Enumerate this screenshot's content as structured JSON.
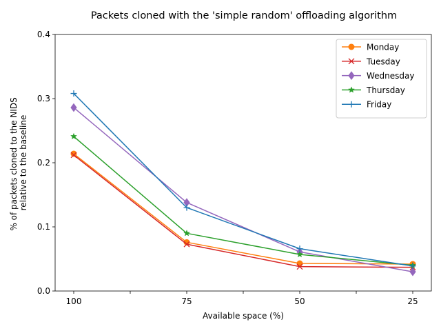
{
  "chart_data": {
    "type": "line",
    "title": "Packets cloned with the 'simple random' offloading algorithm",
    "xlabel": "Available space (%)",
    "ylabel": [
      "% of packets cloned to the NIDS",
      "relative to the baseline"
    ],
    "categories": [
      "100",
      "75",
      "50",
      "25"
    ],
    "ylim": [
      0,
      0.4
    ],
    "yticks": [
      "0.0",
      "0.1",
      "0.2",
      "0.3",
      "0.4"
    ],
    "ytick_values": [
      0,
      0.1,
      0.2,
      0.3,
      0.4
    ],
    "grid": false,
    "legend_position": "top-right",
    "series": [
      {
        "name": "Monday",
        "color": "#ff7f0e",
        "marker": "circle",
        "values": [
          0.214,
          0.076,
          0.043,
          0.042
        ]
      },
      {
        "name": "Tuesday",
        "color": "#d62728",
        "marker": "x",
        "values": [
          0.212,
          0.073,
          0.038,
          0.037
        ]
      },
      {
        "name": "Wednesday",
        "color": "#9467bd",
        "marker": "diamond",
        "values": [
          0.286,
          0.138,
          0.061,
          0.03
        ]
      },
      {
        "name": "Thursday",
        "color": "#2ca02c",
        "marker": "star",
        "values": [
          0.241,
          0.09,
          0.057,
          0.04
        ]
      },
      {
        "name": "Friday",
        "color": "#1f77b4",
        "marker": "plus",
        "values": [
          0.308,
          0.13,
          0.066,
          0.039
        ]
      }
    ]
  }
}
